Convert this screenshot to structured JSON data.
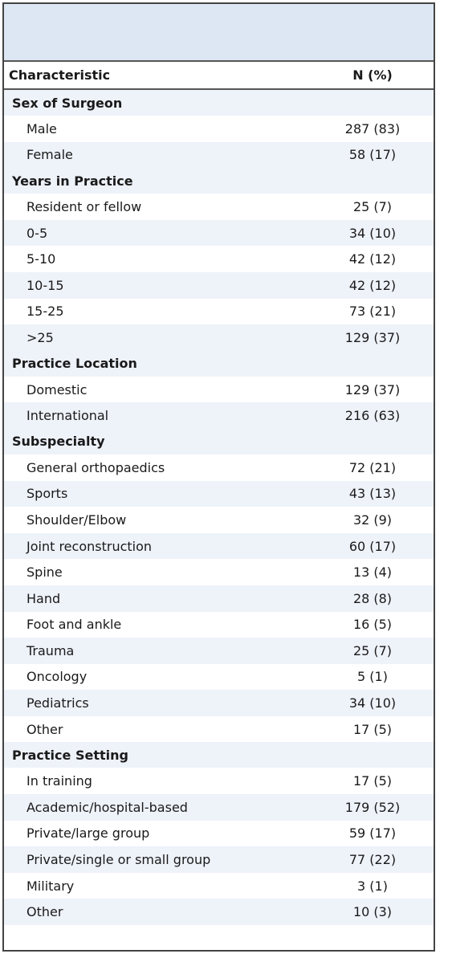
{
  "header": {
    "col1": "Characteristic",
    "col2": "N (%)"
  },
  "sections": [
    {
      "title": "Sex of Surgeon",
      "rows": [
        {
          "label": "Male",
          "value": "287 (83)"
        },
        {
          "label": "Female",
          "value": "58 (17)"
        }
      ]
    },
    {
      "title": "Years in Practice",
      "rows": [
        {
          "label": "Resident or fellow",
          "value": "25 (7)"
        },
        {
          "label": "0-5",
          "value": "34 (10)"
        },
        {
          "label": "5-10",
          "value": "42 (12)"
        },
        {
          "label": "10-15",
          "value": "42 (12)"
        },
        {
          "label": "15-25",
          "value": "73 (21)"
        },
        {
          "label": ">25",
          "value": "129 (37)"
        }
      ]
    },
    {
      "title": "Practice Location",
      "rows": [
        {
          "label": "Domestic",
          "value": "129 (37)"
        },
        {
          "label": "International",
          "value": "216 (63)"
        }
      ]
    },
    {
      "title": "Subspecialty",
      "rows": [
        {
          "label": "General orthopaedics",
          "value": "72 (21)"
        },
        {
          "label": "Sports",
          "value": "43 (13)"
        },
        {
          "label": "Shoulder/Elbow",
          "value": "32 (9)"
        },
        {
          "label": "Joint reconstruction",
          "value": "60 (17)"
        },
        {
          "label": "Spine",
          "value": "13 (4)"
        },
        {
          "label": "Hand",
          "value": "28 (8)"
        },
        {
          "label": "Foot and ankle",
          "value": "16 (5)"
        },
        {
          "label": "Trauma",
          "value": "25 (7)"
        },
        {
          "label": "Oncology",
          "value": "5 (1)"
        },
        {
          "label": "Pediatrics",
          "value": "34 (10)"
        },
        {
          "label": "Other",
          "value": "17 (5)"
        }
      ]
    },
    {
      "title": "Practice Setting",
      "rows": [
        {
          "label": "In training",
          "value": "17 (5)"
        },
        {
          "label": "Academic/hospital-based",
          "value": "179 (52)"
        },
        {
          "label": "Private/large group",
          "value": "59 (17)"
        },
        {
          "label": "Private/single or small group",
          "value": "77 (22)"
        },
        {
          "label": "Military",
          "value": "3 (1)"
        },
        {
          "label": "Other",
          "value": "10 (3)"
        }
      ]
    }
  ]
}
